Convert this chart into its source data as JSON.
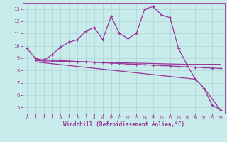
{
  "xlabel": "Windchill (Refroidissement éolien,°C)",
  "background_color": "#c8ecec",
  "line_color": "#993399",
  "xlim": [
    -0.5,
    23.5
  ],
  "ylim": [
    4.5,
    13.5
  ],
  "xticks": [
    0,
    1,
    2,
    3,
    4,
    5,
    6,
    7,
    8,
    9,
    10,
    11,
    12,
    13,
    14,
    15,
    16,
    17,
    18,
    19,
    20,
    21,
    22,
    23
  ],
  "yticks": [
    5,
    6,
    7,
    8,
    9,
    10,
    11,
    12,
    13
  ],
  "series1_x": [
    0,
    1,
    2,
    3,
    4,
    5,
    6,
    7,
    8,
    9,
    10,
    11,
    12,
    13,
    14,
    15,
    16,
    17,
    18,
    19,
    20,
    21,
    22,
    23
  ],
  "series1_y": [
    9.8,
    9.0,
    8.8,
    9.3,
    9.9,
    10.3,
    10.5,
    11.2,
    11.5,
    10.5,
    12.4,
    11.0,
    10.6,
    11.0,
    13.0,
    13.2,
    12.5,
    12.3,
    9.8,
    8.5,
    7.3,
    6.6,
    5.2,
    4.8
  ],
  "series2_x": [
    1,
    2,
    3,
    4,
    5,
    6,
    7,
    8,
    9,
    10,
    11,
    12,
    13,
    14,
    15,
    16,
    17,
    18,
    19,
    20,
    21,
    22,
    23
  ],
  "series2_y": [
    8.9,
    8.87,
    8.83,
    8.8,
    8.77,
    8.73,
    8.7,
    8.67,
    8.63,
    8.6,
    8.57,
    8.53,
    8.5,
    8.47,
    8.43,
    8.4,
    8.37,
    8.33,
    8.3,
    8.27,
    8.23,
    8.2,
    8.17
  ],
  "series3_x": [
    1,
    19,
    23
  ],
  "series3_y": [
    8.8,
    8.5,
    8.5
  ],
  "series4_x": [
    1,
    20,
    21,
    23
  ],
  "series4_y": [
    8.7,
    7.3,
    6.6,
    4.8
  ],
  "grid_color": "#b0d4d4"
}
